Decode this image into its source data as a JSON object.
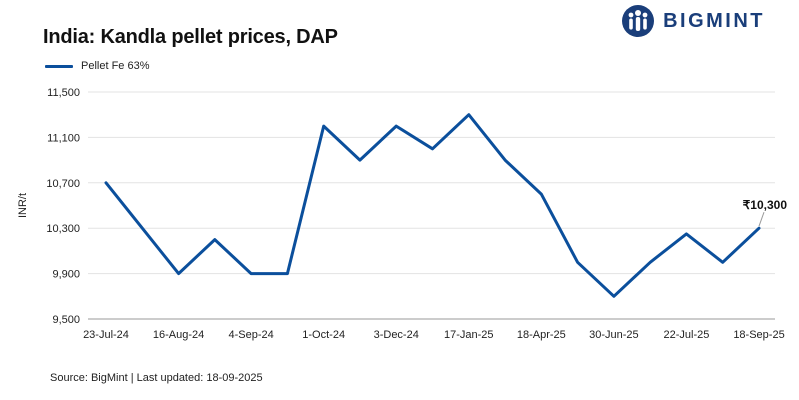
{
  "brand": {
    "name": "BIGMINT",
    "logo_icon": "bigmint-people-logo-icon"
  },
  "source_note": "Source: BigMint | Last updated: 18-09-2025",
  "chart_data": {
    "type": "line",
    "title": "India: Kandla pellet prices, DAP",
    "xlabel": "",
    "ylabel": "INR/t",
    "ylim": [
      9500,
      11500
    ],
    "yticks": [
      9500,
      9900,
      10300,
      10700,
      11100,
      11500
    ],
    "ytick_labels": [
      "9,500",
      "9,900",
      "10,300",
      "10,700",
      "11,100",
      "11,500"
    ],
    "x": [
      "23-Jul-24",
      "",
      "16-Aug-24",
      "",
      "4-Sep-24",
      "",
      "1-Oct-24",
      "",
      "3-Dec-24",
      "",
      "17-Jan-25",
      "",
      "18-Apr-25",
      "",
      "30-Jun-25",
      "",
      "22-Jul-25",
      "",
      "18-Sep-25"
    ],
    "xtick_labels": [
      "23-Jul-24",
      "16-Aug-24",
      "4-Sep-24",
      "1-Oct-24",
      "3-Dec-24",
      "17-Jan-25",
      "18-Apr-25",
      "30-Jun-25",
      "22-Jul-25",
      "18-Sep-25"
    ],
    "xtick_indices": [
      0,
      2,
      4,
      6,
      8,
      10,
      12,
      14,
      16,
      18
    ],
    "series": [
      {
        "name": "Pellet Fe 63%",
        "color": "#0b4f9c",
        "values": [
          10700,
          10300,
          9900,
          10200,
          9900,
          9900,
          11200,
          10900,
          11200,
          11000,
          11300,
          10900,
          10600,
          10000,
          9700,
          10000,
          10250,
          10000,
          10300
        ]
      }
    ],
    "last_point_label": "₹10,300",
    "grid": true,
    "legend_position": "top-left"
  }
}
